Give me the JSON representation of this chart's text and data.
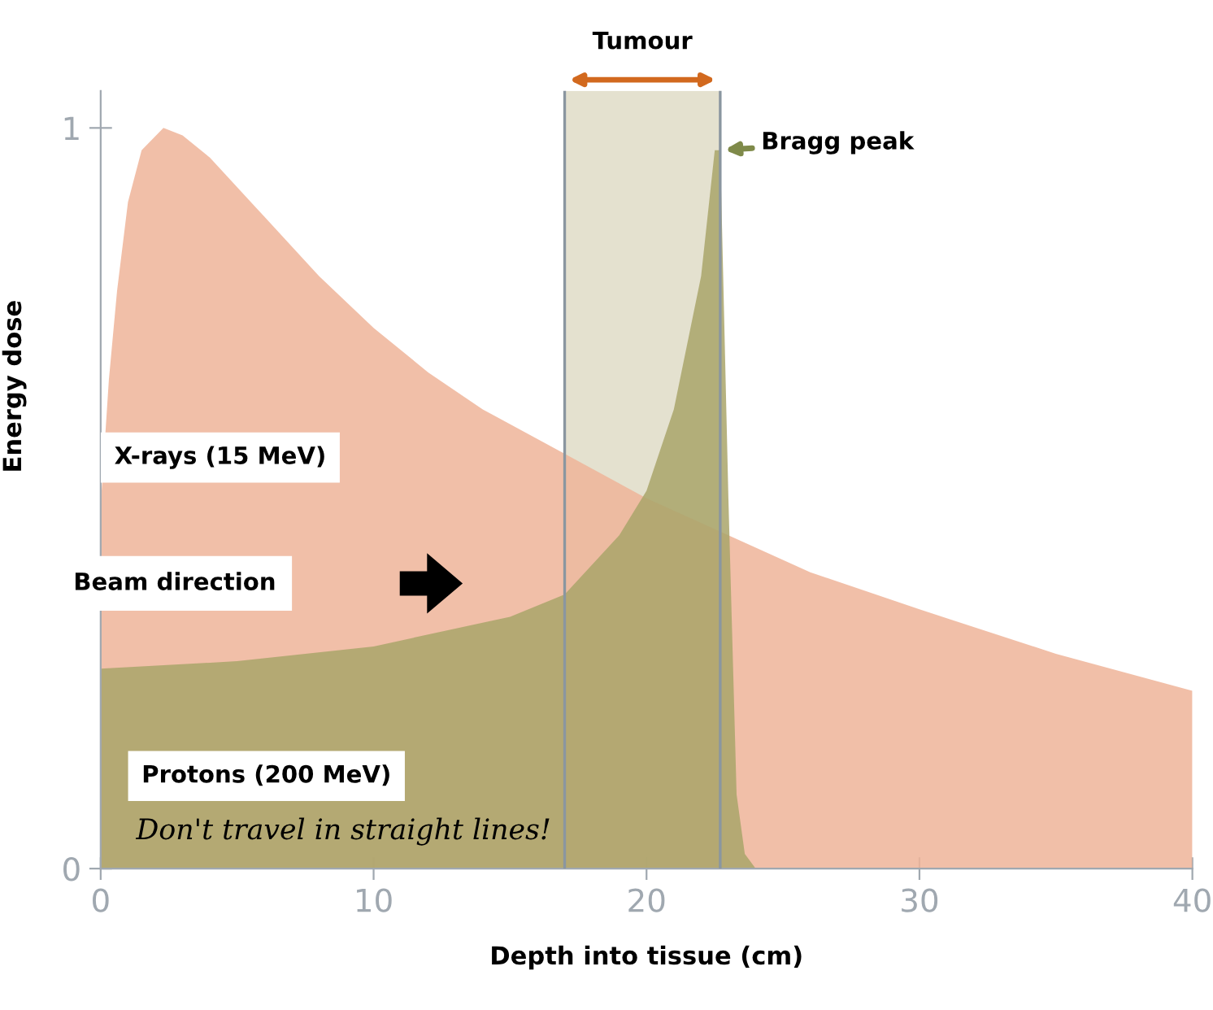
{
  "chart_data": {
    "type": "area",
    "xlabel": "Depth into tissue (cm)",
    "ylabel": "Energy dose",
    "xlim": [
      0,
      40
    ],
    "ylim": [
      0,
      1.05
    ],
    "xticks": [
      0,
      10,
      20,
      30,
      40
    ],
    "yticks": [
      0,
      1
    ],
    "grid": false,
    "legend": false,
    "series": [
      {
        "name": "X-rays (15 MeV)",
        "color": "#eeb499",
        "x": [
          0,
          0.3,
          0.6,
          1,
          1.5,
          2.3,
          3,
          4,
          6,
          8,
          10,
          12,
          14,
          17,
          20,
          23,
          26,
          30,
          35,
          40
        ],
        "values": [
          0.49,
          0.66,
          0.78,
          0.9,
          0.97,
          1.0,
          0.99,
          0.96,
          0.88,
          0.8,
          0.73,
          0.67,
          0.62,
          0.56,
          0.5,
          0.45,
          0.4,
          0.35,
          0.29,
          0.24
        ]
      },
      {
        "name": "Protons (200 MeV)",
        "color": "#a9a56a",
        "x": [
          0,
          5,
          10,
          15,
          17,
          19,
          20,
          21,
          22,
          22.5,
          22.7,
          23,
          23.3,
          23.6,
          24
        ],
        "values": [
          0.27,
          0.28,
          0.3,
          0.34,
          0.37,
          0.45,
          0.51,
          0.62,
          0.8,
          0.97,
          0.97,
          0.5,
          0.1,
          0.02,
          0
        ]
      }
    ],
    "ref_lines": [
      {
        "axis": "x",
        "value": 17,
        "color": "#8a96a0"
      },
      {
        "axis": "x",
        "value": 22.7,
        "color": "#8a96a0"
      }
    ],
    "bands": [
      {
        "axis": "x",
        "from": 17,
        "to": 22.7,
        "label": "Tumour",
        "color": "#e4e1cf"
      }
    ],
    "annotations": [
      {
        "text": "Bragg peak",
        "x": 22.7,
        "y": 0.97
      },
      "Beam direction",
      "Don't travel in straight lines!"
    ]
  }
}
